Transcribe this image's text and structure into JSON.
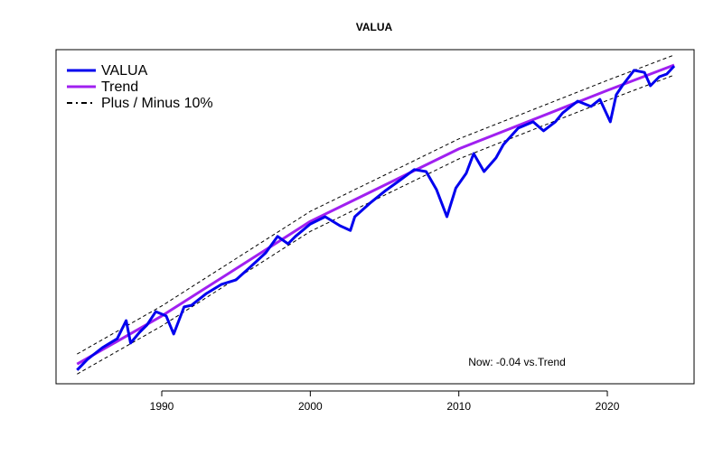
{
  "chart_data": {
    "type": "line",
    "title": "VALUA",
    "xlim": [
      1982.88,
      2025.84
    ],
    "ylim": [
      0,
      100
    ],
    "xticks": [
      1990,
      2000,
      2010,
      2020
    ],
    "legend": "top-left",
    "annotation": "Now: -0.04  vs.Trend",
    "series": [
      {
        "name": "VALUA",
        "color": "#0000ee",
        "style": "solid",
        "x": [
          1984.3,
          1985,
          1986,
          1987,
          1987.6,
          1987.9,
          1988.5,
          1989,
          1989.6,
          1990.3,
          1990.8,
          1991.5,
          1992,
          1993,
          1994,
          1995,
          1996,
          1997,
          1997.8,
          1998.5,
          1999,
          2000,
          2001,
          2002,
          2002.7,
          2003,
          2004,
          2005,
          2006,
          2007,
          2007.8,
          2008.5,
          2009.2,
          2009.8,
          2010.5,
          2011,
          2011.7,
          2012.5,
          2013,
          2014,
          2015,
          2015.7,
          2016.5,
          2017,
          2018,
          2018.9,
          2019.5,
          2020.2,
          2020.6,
          2021,
          2021.8,
          2022.5,
          2022.9,
          2023.5,
          2024,
          2024.5
        ],
        "values": [
          4.1,
          7.3,
          10.8,
          13.5,
          18.9,
          12.2,
          15.4,
          17.6,
          21.6,
          20.3,
          14.9,
          23,
          23.5,
          27,
          29.7,
          31.1,
          35.1,
          39.2,
          44.1,
          41.9,
          44.1,
          47.8,
          50,
          47.3,
          45.9,
          50,
          54,
          57.6,
          60.8,
          64.1,
          63.5,
          58.1,
          50,
          58.6,
          63,
          68.9,
          63.5,
          67.6,
          71.6,
          76.5,
          78.4,
          75.7,
          78.4,
          81.1,
          84.6,
          83,
          85.1,
          78.4,
          86.5,
          89.2,
          93.8,
          93.2,
          89.2,
          91.9,
          92.7,
          95.1
        ]
      },
      {
        "name": "Trend",
        "color": "#a020f0",
        "style": "solid",
        "x": [
          1984.3,
          1990,
          2000,
          2010,
          2020,
          2024.5
        ],
        "values": [
          5.9,
          20.3,
          48.6,
          70.3,
          87.8,
          95.4
        ]
      },
      {
        "name": "Plus / Minus 10%",
        "color": "#000000",
        "style": "dashed",
        "x": [
          1984.3,
          1990,
          2000,
          2010,
          2020,
          2024.5
        ],
        "upper": [
          8.9,
          23.3,
          51.6,
          73.3,
          90.8,
          98.4
        ],
        "lower": [
          2.9,
          17.3,
          45.6,
          67.3,
          84.8,
          92.4
        ]
      }
    ]
  }
}
